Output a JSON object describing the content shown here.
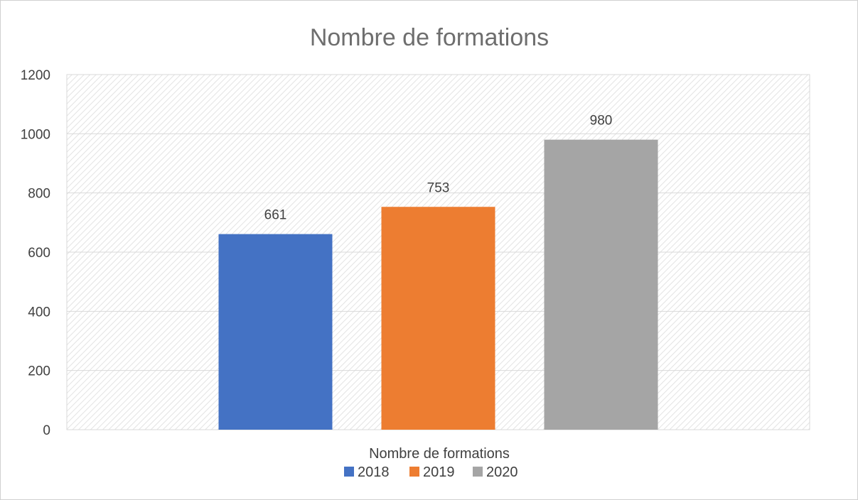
{
  "chart_data": {
    "type": "bar",
    "title": "Nombre de formations",
    "categories": [
      "Nombre de formations"
    ],
    "series": [
      {
        "name": "2018",
        "values": [
          661
        ],
        "color": "#4472c4"
      },
      {
        "name": "2019",
        "values": [
          753
        ],
        "color": "#ed7d31"
      },
      {
        "name": "2020",
        "values": [
          980
        ],
        "color": "#a5a5a5"
      }
    ],
    "ylim": [
      0,
      1200
    ],
    "yticks": [
      0,
      200,
      400,
      600,
      800,
      1000,
      1200
    ],
    "grid": true,
    "data_labels": true,
    "legend_position": "bottom",
    "colors": {
      "grid": "#d9d9d9",
      "plot_hatch": "#e3e3e3",
      "text": "#404040",
      "title": "#6e6e6e"
    }
  }
}
